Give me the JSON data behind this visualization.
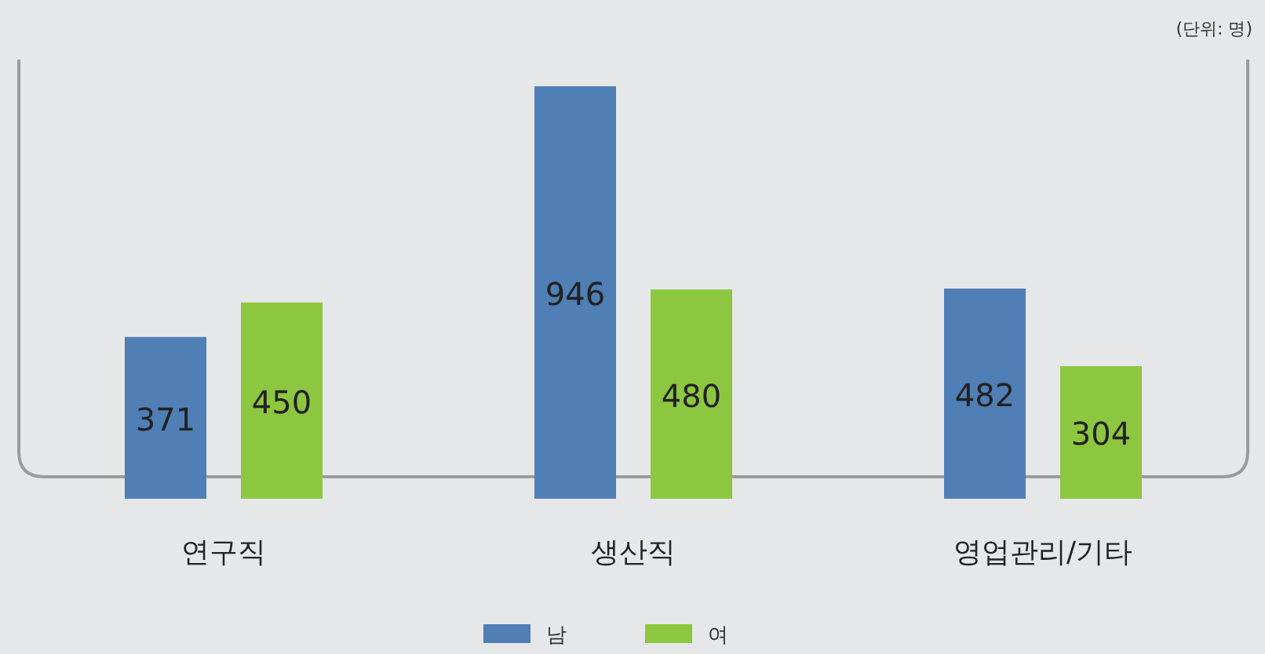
{
  "chart_data": {
    "type": "bar",
    "categories": [
      "연구직",
      "생산직",
      "영업관리/기타"
    ],
    "series": [
      {
        "name": "남",
        "color": "#4f7fb5",
        "values": [
          371,
          946,
          482
        ]
      },
      {
        "name": "여",
        "color": "#8dc63f",
        "values": [
          450,
          480,
          304
        ]
      }
    ],
    "data_labels": true,
    "legend": "bottom",
    "annotations": [
      "(단위: 명)"
    ]
  }
}
